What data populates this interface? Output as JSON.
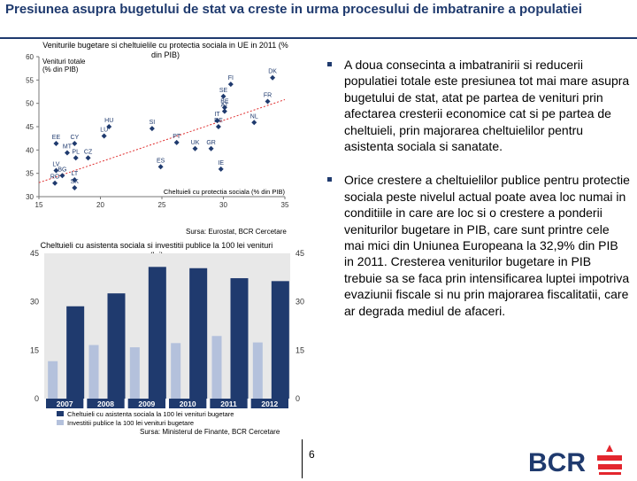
{
  "page": {
    "title": "Presiunea asupra bugetului de stat va creste in urma procesului de imbatranire a populatiei",
    "page_number": "6",
    "logo_text": "BCR"
  },
  "colors": {
    "title": "#1f3a6e",
    "navy": "#1f3a6e",
    "bar_light": "#b4c1dc",
    "trend": "#e03030",
    "logo_red": "#e3262e",
    "logo_blue": "#1f3a6e"
  },
  "bullets": [
    "A doua consecinta a imbatranirii si reducerii populatiei totale este presiunea tot mai mare asupra bugetului de stat, atat pe partea de venituri prin afectarea cresterii economice cat si pe partea de cheltuieli, prin majorarea cheltuielilor pentru asistenta sociala si sanatate.",
    "Orice crestere a cheltuielilor publice pentru protectie sociala peste nivelul actual poate avea loc numai in conditiile in care are loc si o crestere a ponderii veniturilor bugetare in PIB, care sunt printre cele mai mici din Uniunea Europeana la 32,9% din PIB in 2011. Cresterea veniturilor bugetare in PIB trebuie sa se faca prin intensificarea luptei impotriva evaziunii fiscale si nu prin majorarea fiscalitatii, care ar degrada mediul de afaceri."
  ],
  "chart_data": [
    {
      "type": "scatter",
      "title": "Veniturile bugetare si cheltuielile cu protectia sociala in UE in 2011 (% din PIB)",
      "ylabel": "Venituri totale (% din PIB)",
      "xlabel": "Cheltuieli cu protectia sociala (% din PIB)",
      "source": "Sursa: Eurostat, BCR Cercetare",
      "xlim": [
        15,
        35
      ],
      "ylim": [
        30,
        60
      ],
      "xticks": [
        "15",
        "20",
        "25",
        "30",
        "35"
      ],
      "yticks": [
        "60",
        "55",
        "50",
        "45",
        "40",
        "35",
        "30"
      ],
      "points": [
        {
          "label": "DK",
          "x": 34,
          "y": 55.5
        },
        {
          "label": "FI",
          "x": 30.6,
          "y": 54.1
        },
        {
          "label": "SE",
          "x": 30,
          "y": 51.5
        },
        {
          "label": "FR",
          "x": 33.6,
          "y": 50.4
        },
        {
          "label": "BE",
          "x": 30.1,
          "y": 49.1
        },
        {
          "label": "AT",
          "x": 30.1,
          "y": 48.3
        },
        {
          "label": "IT",
          "x": 29.5,
          "y": 46.3
        },
        {
          "label": "NL",
          "x": 32.5,
          "y": 45.9
        },
        {
          "label": "DE",
          "x": 29.6,
          "y": 45.0
        },
        {
          "label": "HU",
          "x": 20.7,
          "y": 45.0
        },
        {
          "label": "SI",
          "x": 24.2,
          "y": 44.6
        },
        {
          "label": "LU",
          "x": 20.3,
          "y": 43.0
        },
        {
          "label": "CY",
          "x": 17.9,
          "y": 41.4
        },
        {
          "label": "EE",
          "x": 16.4,
          "y": 41.4
        },
        {
          "label": "PT",
          "x": 26.2,
          "y": 41.6
        },
        {
          "label": "UK",
          "x": 27.7,
          "y": 40.3
        },
        {
          "label": "GR",
          "x": 29.0,
          "y": 40.3
        },
        {
          "label": "MT",
          "x": 17.3,
          "y": 39.4
        },
        {
          "label": "PL",
          "x": 18.0,
          "y": 38.3
        },
        {
          "label": "CZ",
          "x": 19.0,
          "y": 38.3
        },
        {
          "label": "ES",
          "x": 24.9,
          "y": 36.4
        },
        {
          "label": "IE",
          "x": 29.8,
          "y": 35.9
        },
        {
          "label": "LV",
          "x": 16.4,
          "y": 35.6
        },
        {
          "label": "BG",
          "x": 16.9,
          "y": 34.5
        },
        {
          "label": "LT",
          "x": 17.9,
          "y": 33.6
        },
        {
          "label": "RO",
          "x": 16.3,
          "y": 32.9
        },
        {
          "label": "SK",
          "x": 17.9,
          "y": 31.9
        }
      ],
      "trendline": {
        "x": [
          15,
          35
        ],
        "y": [
          33.0,
          50.8
        ]
      }
    },
    {
      "type": "bar",
      "title": "Cheltuieli cu asistenta sociala si investitii publice la 100 lei venituri (lei)",
      "source": "Sursa: Ministerul de Finante, BCR Cercetare",
      "categories": [
        "2007",
        "2008",
        "2009",
        "2010",
        "2011",
        "2012"
      ],
      "ylim": [
        0,
        45
      ],
      "yticks": [
        "45",
        "30",
        "15",
        "0"
      ],
      "series": [
        {
          "name": "Cheltuieli cu asistenta sociala la 100 lei venituri bugetare",
          "values": [
            28.6,
            32.6,
            40.8,
            40.4,
            37.3,
            36.4
          ]
        },
        {
          "name": "Investitii publice la 100 lei venituri bugetare",
          "values": [
            11.6,
            16.6,
            15.9,
            17.2,
            19.4,
            17.4
          ]
        }
      ]
    }
  ]
}
